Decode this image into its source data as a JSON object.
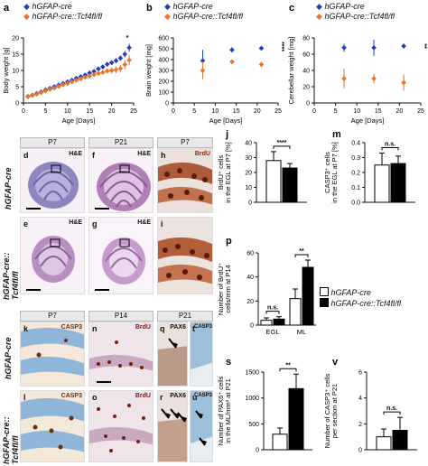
{
  "legend_top": {
    "wt": "hGFAP-cre",
    "ko": "hGFAP-cre::Tcf4fl/fl"
  },
  "legend_mid": {
    "wt": "hGFAP-cre",
    "ko": "hGFAP-cre::Tcf4fl/fl"
  },
  "colors": {
    "wt": "#1f3fbf",
    "ko": "#e8742a",
    "bar_wt": "#ffffff",
    "bar_ko": "#000000"
  },
  "panels": {
    "a": "a",
    "b": "b",
    "c": "c",
    "j": "j",
    "m": "m",
    "p": "p",
    "s": "s",
    "v": "v",
    "d": "d",
    "e": "e",
    "f": "f",
    "g": "g",
    "h": "h",
    "i": "i",
    "k": "k",
    "l": "l",
    "n": "n",
    "o": "o",
    "q": "q",
    "r": "r",
    "t": "t",
    "u": "u"
  },
  "micro_headers": {
    "p7a": "P7",
    "p21": "P21",
    "p7b": "P7",
    "p7c": "P7",
    "p14": "P14",
    "p21b": "P21"
  },
  "micro_tags": {
    "he": "H&E",
    "brdu": "BrdU",
    "casp3": "CASP3",
    "pax6": "PAX6"
  },
  "row_labels": {
    "wt": "hGFAP-cre",
    "ko": "hGFAP-cre::\nTcf4fl/fl"
  },
  "chart_data": [
    {
      "id": "a",
      "type": "scatter",
      "xlabel": "Age [Days]",
      "ylabel": "Body weight [g]",
      "xlim": [
        0,
        25
      ],
      "ylim": [
        0,
        20
      ],
      "xticks": [
        0,
        5,
        10,
        15,
        20,
        25
      ],
      "yticks": [
        0,
        5,
        10,
        15,
        20
      ],
      "series": [
        {
          "name": "hGFAP-cre",
          "x": [
            1,
            2,
            3,
            4,
            5,
            6,
            7,
            8,
            9,
            10,
            11,
            12,
            13,
            14,
            15,
            16,
            17,
            18,
            19,
            20,
            21,
            22,
            23,
            24
          ],
          "y": [
            2.0,
            2.4,
            2.9,
            3.4,
            4.0,
            4.5,
            5.0,
            5.5,
            6.0,
            6.5,
            7.0,
            7.6,
            8.1,
            8.6,
            9.2,
            9.7,
            10.5,
            11.1,
            11.9,
            12.4,
            13.0,
            13.8,
            15.0,
            17.0
          ],
          "err": [
            0.3,
            0.3,
            0.3,
            0.3,
            0.3,
            0.4,
            0.4,
            0.4,
            0.4,
            0.4,
            0.5,
            0.5,
            0.5,
            0.5,
            0.5,
            0.6,
            0.6,
            0.6,
            0.7,
            0.7,
            0.8,
            0.8,
            1.0,
            1.2
          ]
        },
        {
          "name": "hGFAP-cre::Tcf4fl/fl",
          "x": [
            1,
            2,
            3,
            4,
            5,
            6,
            7,
            8,
            9,
            10,
            11,
            12,
            13,
            14,
            15,
            16,
            17,
            18,
            19,
            20,
            21,
            22,
            23,
            24
          ],
          "y": [
            1.9,
            2.3,
            2.7,
            3.2,
            3.7,
            4.2,
            4.6,
            5.1,
            5.6,
            6.0,
            6.5,
            7.0,
            7.4,
            7.9,
            8.3,
            8.7,
            9.1,
            9.4,
            9.8,
            10.0,
            10.2,
            10.6,
            11.8,
            13.2
          ],
          "err": [
            0.3,
            0.3,
            0.3,
            0.3,
            0.3,
            0.4,
            0.4,
            0.4,
            0.4,
            0.5,
            0.5,
            0.5,
            0.5,
            0.6,
            0.6,
            0.6,
            0.7,
            0.7,
            0.8,
            0.9,
            1.0,
            1.1,
            1.4,
            1.6
          ]
        }
      ],
      "annotations": [
        "*"
      ]
    },
    {
      "id": "b",
      "type": "scatter",
      "xlabel": "Age [Days]",
      "ylabel": "Brain weight [mg]",
      "xlim": [
        0,
        25
      ],
      "ylim": [
        0,
        600
      ],
      "xticks": [
        0,
        5,
        10,
        15,
        20,
        25
      ],
      "yticks": [
        0,
        100,
        200,
        300,
        400,
        500,
        600
      ],
      "series": [
        {
          "name": "hGFAP-cre",
          "x": [
            7,
            14,
            21
          ],
          "y": [
            390,
            490,
            505
          ],
          "err": [
            100,
            25,
            15
          ]
        },
        {
          "name": "hGFAP-cre::Tcf4fl/fl",
          "x": [
            7,
            14,
            21
          ],
          "y": [
            300,
            380,
            355
          ],
          "err": [
            80,
            20,
            25
          ]
        }
      ],
      "annotations": [
        "****"
      ]
    },
    {
      "id": "c",
      "type": "scatter",
      "xlabel": "Age [Days]",
      "ylabel": "Cerebellar weight [mg]",
      "xlim": [
        0,
        25
      ],
      "ylim": [
        0,
        80
      ],
      "xticks": [
        0,
        5,
        10,
        15,
        20,
        25
      ],
      "yticks": [
        0,
        20,
        40,
        60,
        80
      ],
      "series": [
        {
          "name": "hGFAP-cre",
          "x": [
            7,
            14,
            21
          ],
          "y": [
            68,
            68,
            70
          ],
          "err": [
            5,
            10,
            3
          ]
        },
        {
          "name": "hGFAP-cre::Tcf4fl/fl",
          "x": [
            7,
            14,
            21
          ],
          "y": [
            30,
            30,
            25
          ],
          "err": [
            12,
            6,
            10
          ]
        }
      ],
      "annotations": [
        "**"
      ]
    },
    {
      "id": "j",
      "type": "bar",
      "ylabel": "BrdU+ cells in the EGL at P7 [%]",
      "ylim": [
        0,
        40
      ],
      "yticks": [
        0,
        10,
        20,
        30,
        40
      ],
      "series": [
        {
          "name": "hGFAP-cre",
          "values": [
            28
          ],
          "err": [
            6
          ]
        },
        {
          "name": "hGFAP-cre::Tcf4fl/fl",
          "values": [
            23
          ],
          "err": [
            3
          ]
        }
      ],
      "annotations": [
        "****"
      ]
    },
    {
      "id": "m",
      "type": "bar",
      "ylabel": "CASP3+ cells in the EGL at P7 [%]",
      "ylim": [
        0,
        0.4
      ],
      "yticks": [
        0.0,
        0.1,
        0.2,
        0.3,
        0.4
      ],
      "series": [
        {
          "name": "hGFAP-cre",
          "values": [
            0.25
          ],
          "err": [
            0.08
          ]
        },
        {
          "name": "hGFAP-cre::Tcf4fl/fl",
          "values": [
            0.26
          ],
          "err": [
            0.05
          ]
        }
      ],
      "annotations": [
        "n.s."
      ]
    },
    {
      "id": "p",
      "type": "bar",
      "ylabel": "Number of BrdU+ cells/mm at P14",
      "categories": [
        "EGL",
        "ML"
      ],
      "ylim": [
        0,
        60
      ],
      "yticks": [
        0,
        20,
        40,
        60
      ],
      "series": [
        {
          "name": "hGFAP-cre",
          "values": [
            4,
            22
          ],
          "err": [
            2,
            8
          ]
        },
        {
          "name": "hGFAP-cre::Tcf4fl/fl",
          "values": [
            5,
            48
          ],
          "err": [
            2,
            6
          ]
        }
      ],
      "annotations": [
        "n.s.",
        "**"
      ]
    },
    {
      "id": "s",
      "type": "bar",
      "ylabel": "Number of PAX6+ cells in the ML/mm² at P21",
      "ylim": [
        0,
        1500
      ],
      "yticks": [
        0,
        500,
        1000,
        1500
      ],
      "series": [
        {
          "name": "hGFAP-cre",
          "values": [
            300
          ],
          "err": [
            120
          ]
        },
        {
          "name": "hGFAP-cre::Tcf4fl/fl",
          "values": [
            1180
          ],
          "err": [
            280
          ]
        }
      ],
      "annotations": [
        "**"
      ]
    },
    {
      "id": "v",
      "type": "bar",
      "ylabel": "Number of CASP3+ cells per section at P21",
      "ylim": [
        0,
        6
      ],
      "yticks": [
        0,
        2,
        4,
        6
      ],
      "series": [
        {
          "name": "hGFAP-cre",
          "values": [
            1.0
          ],
          "err": [
            0.6
          ]
        },
        {
          "name": "hGFAP-cre::Tcf4fl/fl",
          "values": [
            1.5
          ],
          "err": [
            1.0
          ]
        }
      ],
      "annotations": [
        "n.s."
      ]
    }
  ]
}
